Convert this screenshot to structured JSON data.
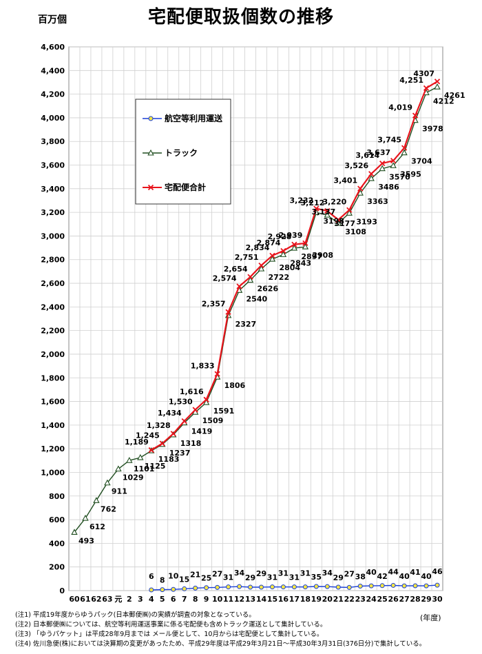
{
  "header": {
    "title": "宅配便取扱個数の推移",
    "y_unit": "百万個",
    "x_unit": "(年度)"
  },
  "notes": [
    "(注1) 平成19年度からゆうパック(日本郵便㈱)の実績が調査の対象となっている。",
    "(注2) 日本郵便㈱については、航空等利用運送事業に係る宅配便も含めトラック運送として集計している。",
    "(注3) 「ゆうパケット」は平成28年9月までは メール便として、10月からは宅配便として集計している。",
    "(注4) 佐川急便(株)においては決算期の変更があったため、平成29年度は平成29年3月21日〜平成30年3月31日(376日分)で集計している。"
  ],
  "chart_data": {
    "type": "line",
    "title": "宅配便取扱個数の推移",
    "ylabel": "百万個",
    "xlabel": "(年度)",
    "ylim": [
      0,
      4600
    ],
    "yticks": [
      0,
      200,
      400,
      600,
      800,
      1000,
      1200,
      1400,
      1600,
      1800,
      2000,
      2200,
      2400,
      2600,
      2800,
      3000,
      3200,
      3400,
      3600,
      3800,
      4000,
      4200,
      4400,
      4600
    ],
    "ytick_labels": [
      "0",
      "200",
      "400",
      "600",
      "800",
      "1,000",
      "1,200",
      "1,400",
      "1,600",
      "1,800",
      "2,000",
      "2,200",
      "2,400",
      "2,600",
      "2,800",
      "3,000",
      "3,200",
      "3,400",
      "3,600",
      "3,800",
      "4,000",
      "4,200",
      "4,400",
      "4,600"
    ],
    "grid": true,
    "legend_position": "upper-left",
    "categories": [
      "60",
      "61",
      "62",
      "63",
      "元",
      "2",
      "3",
      "4",
      "5",
      "6",
      "7",
      "8",
      "9",
      "10",
      "11",
      "12",
      "13",
      "14",
      "15",
      "16",
      "17",
      "18",
      "19",
      "20",
      "21",
      "22",
      "23",
      "24",
      "25",
      "26",
      "27",
      "28",
      "29",
      "30"
    ],
    "series": [
      {
        "name": "航空等利用運送",
        "color": "#1a3fd6",
        "marker": "circle",
        "values": [
          null,
          null,
          null,
          null,
          null,
          null,
          null,
          6,
          8,
          10,
          15,
          21,
          25,
          27,
          31,
          34,
          29,
          29,
          31,
          31,
          31,
          31,
          35,
          34,
          29,
          27,
          38,
          40,
          42,
          44,
          40,
          41,
          40,
          46
        ],
        "labels": [
          "",
          "",
          "",
          "",
          "",
          "",
          "",
          "6",
          "8",
          "10",
          "15",
          "21",
          "25",
          "27",
          "31",
          "34",
          "29",
          "29",
          "31",
          "31",
          "31",
          "31",
          "35",
          "34",
          "29",
          "27",
          "38",
          "40",
          "42",
          "44",
          "40",
          "41",
          "40",
          "46"
        ]
      },
      {
        "name": "トラック",
        "color": "#1f4d1f",
        "marker": "triangle",
        "values": [
          493,
          612,
          762,
          911,
          1029,
          1101,
          1125,
          1183,
          1237,
          1318,
          1419,
          1509,
          1591,
          1806,
          2327,
          2540,
          2626,
          2722,
          2804,
          2843,
          2897,
          2908,
          3198,
          3177,
          3108,
          3193,
          3363,
          3486,
          3570,
          3595,
          3704,
          3978,
          4212,
          4261
        ],
        "labels": [
          "493",
          "612",
          "762",
          "911",
          "1029",
          "1101",
          "1125",
          "1183",
          "1237",
          "1318",
          "1419",
          "1509",
          "1591",
          "1806",
          "2327",
          "2540",
          "2626",
          "2722",
          "2804",
          "2843",
          "2897",
          "2908",
          "3198",
          "3177",
          "3108",
          "3193",
          "3363",
          "3486",
          "3570",
          "3595",
          "3704",
          "3978",
          "4212",
          "4261"
        ]
      },
      {
        "name": "宅配便合計",
        "color": "#e8141c",
        "marker": "x",
        "values": [
          null,
          null,
          null,
          null,
          null,
          null,
          null,
          1189,
          1245,
          1328,
          1434,
          1530,
          1616,
          1833,
          2357,
          2574,
          2654,
          2751,
          2834,
          2874,
          2928,
          2939,
          3232,
          3212,
          3137,
          3220,
          3401,
          3526,
          3614,
          3637,
          3745,
          4019,
          4251,
          4307
        ],
        "labels": [
          "",
          "",
          "",
          "",
          "",
          "",
          "",
          "1,189",
          "1,245",
          "1,328",
          "1,434",
          "1,530",
          "1,616",
          "1,833",
          "2,357",
          "2,574",
          "2,654",
          "2,751",
          "2,834",
          "2,874",
          "2,928",
          "2,939",
          "3,232",
          "3,212",
          "3,137",
          "3,220",
          "3,401",
          "3,526",
          "3,614",
          "3,637",
          "3,745",
          "4,019",
          "4,251",
          "4307"
        ]
      }
    ]
  }
}
